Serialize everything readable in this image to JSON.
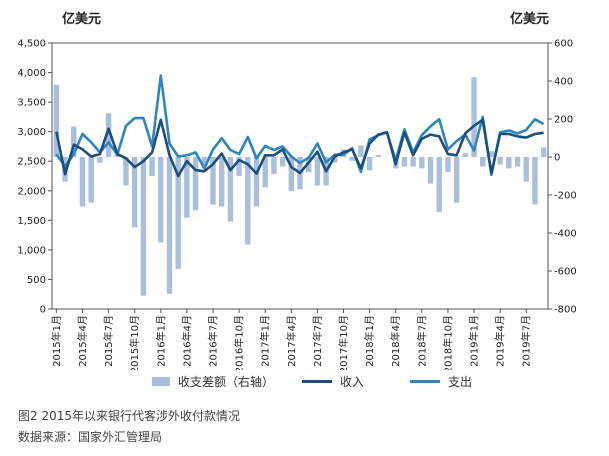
{
  "units": {
    "left": "亿美元",
    "right": "亿美元"
  },
  "caption": {
    "figure": "图2   2015年以来银行代客涉外收付款情况",
    "source": "数据来源：国家外汇管理局"
  },
  "colors": {
    "bar": "#a9bfdb",
    "income": "#1c4e80",
    "expense": "#2e86c1"
  },
  "chart_data": {
    "type": "bar+line",
    "x": [
      "2015年1月",
      "2015年2月",
      "2015年3月",
      "2015年4月",
      "2015年5月",
      "2015年6月",
      "2015年7月",
      "2015年8月",
      "2015年9月",
      "2015年10月",
      "2015年11月",
      "2015年12月",
      "2016年1月",
      "2016年2月",
      "2016年3月",
      "2016年4月",
      "2016年5月",
      "2016年6月",
      "2016年7月",
      "2016年8月",
      "2016年9月",
      "2016年10月",
      "2016年11月",
      "2016年12月",
      "2017年1月",
      "2017年2月",
      "2017年3月",
      "2017年4月",
      "2017年5月",
      "2017年6月",
      "2017年7月",
      "2017年8月",
      "2017年9月",
      "2017年10月",
      "2017年11月",
      "2017年12月",
      "2018年1月",
      "2018年2月",
      "2018年3月",
      "2018年4月",
      "2018年5月",
      "2018年6月",
      "2018年7月",
      "2018年8月",
      "2018年9月",
      "2018年10月",
      "2018年11月",
      "2018年12月",
      "2019年1月",
      "2019年2月",
      "2019年3月",
      "2019年4月",
      "2019年5月",
      "2019年6月",
      "2019年7月",
      "2019年8月",
      "2019年9月"
    ],
    "x_tick_labels": [
      "2015年1月",
      "2015年4月",
      "2015年7月",
      "2015年10月",
      "2016年1月",
      "2016年4月",
      "2016年7月",
      "2016年10月",
      "2017年1月",
      "2017年4月",
      "2017年7月",
      "2017年10月",
      "2018年1月",
      "2018年4月",
      "2018年7月",
      "2018年10月",
      "2019年1月",
      "2019年4月",
      "2019年7月"
    ],
    "left_axis": {
      "min": 0,
      "max": 4500,
      "step": 500,
      "tick_labels": [
        "0",
        "500",
        "1,000",
        "1,500",
        "2,000",
        "2,500",
        "3,000",
        "3,500",
        "4,000",
        "4,500"
      ]
    },
    "right_axis": {
      "min": -800,
      "max": 600,
      "step": 200,
      "tick_labels": [
        "-800",
        "-600",
        "-400",
        "-200",
        "0",
        "200",
        "400",
        "600"
      ]
    },
    "series": [
      {
        "name": "收支差额（右轴）",
        "type": "bar",
        "axis": "right",
        "values": [
          380,
          -130,
          160,
          -260,
          -240,
          -30,
          230,
          10,
          -150,
          -370,
          -730,
          -100,
          -450,
          -720,
          -590,
          -320,
          -280,
          -50,
          -250,
          -260,
          -340,
          -100,
          -460,
          -260,
          -160,
          -90,
          -50,
          -180,
          -170,
          -80,
          -150,
          -150,
          -30,
          40,
          -20,
          60,
          -70,
          10,
          0,
          -60,
          -50,
          -50,
          -60,
          -140,
          -290,
          -80,
          -240,
          20,
          420,
          -50,
          30,
          -40,
          -60,
          -50,
          -130,
          -250,
          50
        ]
      },
      {
        "name": "收入",
        "type": "line",
        "axis": "left",
        "values": [
          3000,
          2280,
          2780,
          2700,
          2580,
          2620,
          3050,
          2620,
          2550,
          2400,
          2500,
          2650,
          3200,
          2600,
          2250,
          2500,
          2350,
          2330,
          2450,
          2630,
          2350,
          2520,
          2450,
          2290,
          2600,
          2600,
          2700,
          2400,
          2300,
          2480,
          2660,
          2330,
          2580,
          2650,
          2700,
          2380,
          2800,
          2950,
          2990,
          2450,
          2990,
          2600,
          2880,
          2950,
          2920,
          2620,
          2600,
          2970,
          3100,
          3200,
          2300,
          2960,
          2960,
          2920,
          2900,
          2960,
          2980
        ]
      },
      {
        "name": "支出",
        "type": "line",
        "axis": "left",
        "values": [
          2620,
          2410,
          2620,
          2960,
          2820,
          2650,
          2820,
          2610,
          3100,
          3230,
          3230,
          2750,
          3950,
          2800,
          2580,
          2600,
          2650,
          2380,
          2700,
          2890,
          2690,
          2620,
          2910,
          2550,
          2760,
          2690,
          2750,
          2580,
          2470,
          2560,
          2800,
          2480,
          2610,
          2610,
          2720,
          2320,
          2870,
          2940,
          2990,
          2510,
          3040,
          2650,
          2940,
          3090,
          3210,
          2700,
          2840,
          2950,
          2680,
          3250,
          2270,
          2990,
          3020,
          2970,
          3030,
          3210,
          3130
        ]
      }
    ]
  }
}
